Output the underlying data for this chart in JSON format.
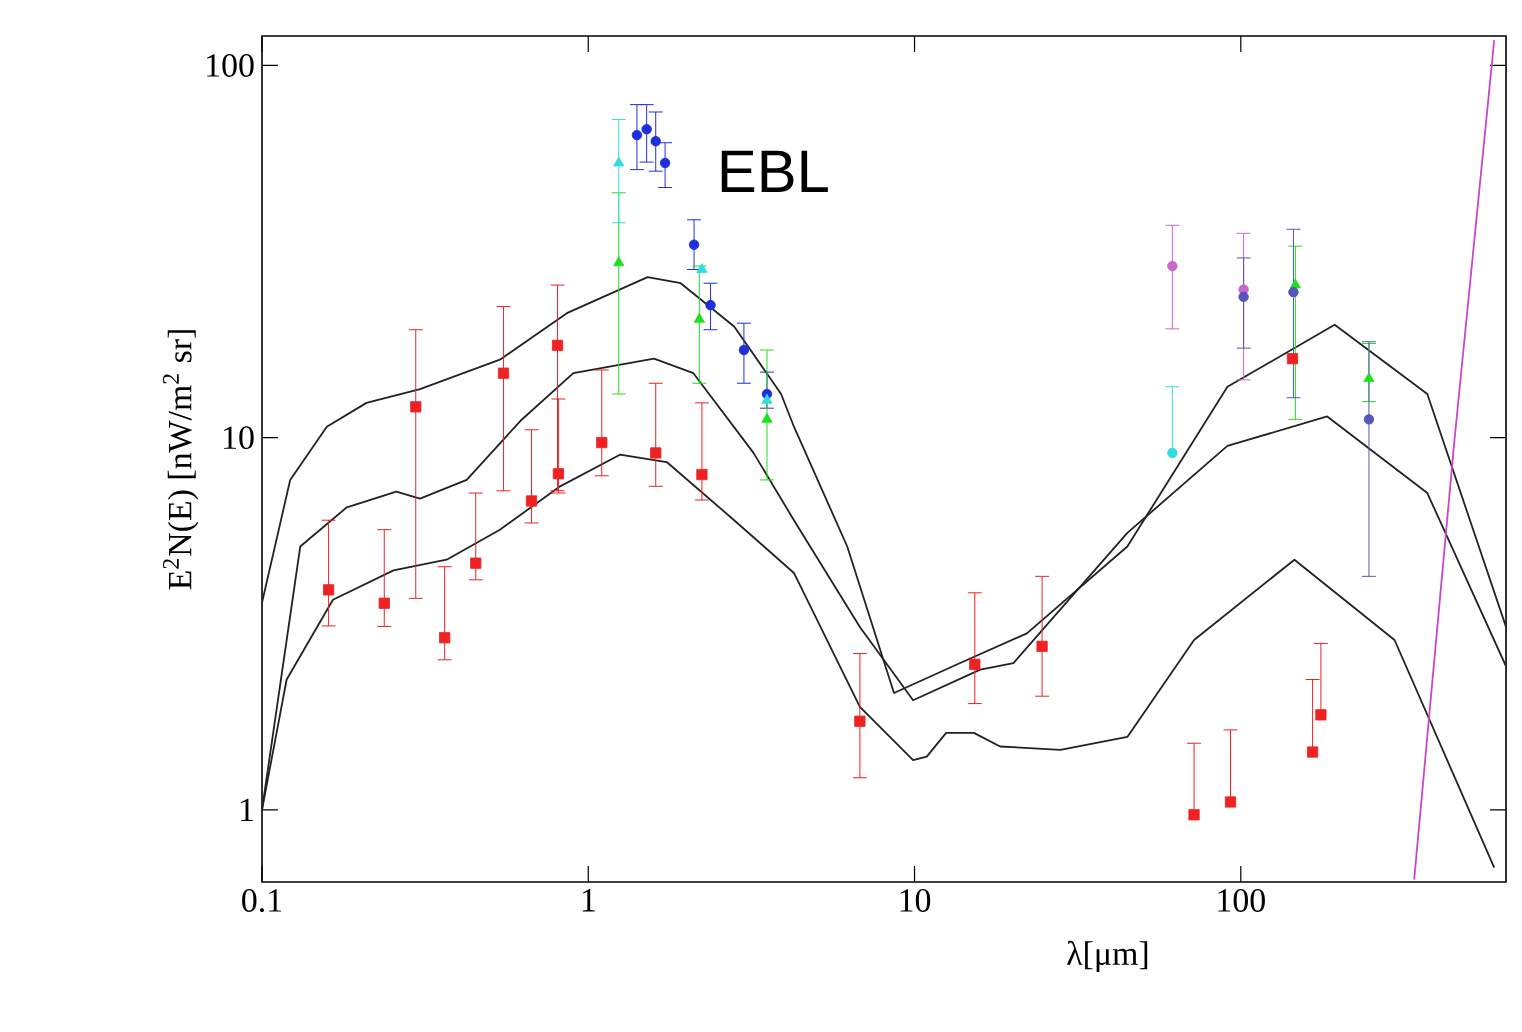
{
  "chart_data": {
    "type": "scatter",
    "xlabel": "λ[μm]",
    "ylabel": "E$^{2}$N(E) [nW/m$^{2}$ sr]",
    "annotations": [
      "EBL"
    ],
    "log": "xy",
    "grid": false,
    "xlim": [
      0.1,
      650
    ],
    "ylim": [
      0.64,
      120
    ],
    "xticks": [
      0.1,
      1,
      10,
      100
    ],
    "yticks": [
      1,
      10,
      100
    ],
    "series": [
      {
        "type": "line",
        "marker": "none",
        "color": "#222222",
        "x": [
          0.1,
          0.122,
          0.158,
          0.209,
          0.305,
          0.536,
          0.86,
          1.52,
          1.92,
          2.8,
          3.9,
          4.27,
          6.22,
          8.65,
          13.8,
          22.1,
          44.9,
          91,
          194,
          373,
          650
        ],
        "values": [
          3.6,
          7.7,
          10.7,
          12.4,
          13.5,
          16.2,
          21.6,
          27.0,
          26.0,
          19.9,
          13.1,
          10.7,
          5.1,
          2.06,
          2.48,
          2.98,
          5.1,
          13.7,
          20.1,
          13.1,
          3.1
        ]
      },
      {
        "type": "line",
        "marker": "none",
        "color": "#222222",
        "x": [
          0.1,
          0.131,
          0.182,
          0.258,
          0.305,
          0.424,
          0.62,
          0.9,
          1.59,
          2.1,
          3.21,
          4.27,
          6.8,
          9.9,
          15.9,
          20.1,
          44.9,
          91,
          184,
          373,
          650
        ],
        "values": [
          1.0,
          5.1,
          6.5,
          7.16,
          6.86,
          7.7,
          11.1,
          14.9,
          16.3,
          14.9,
          9.1,
          6.0,
          3.1,
          1.97,
          2.38,
          2.48,
          5.55,
          9.5,
          11.4,
          7.1,
          2.43
        ]
      },
      {
        "type": "line",
        "marker": "none",
        "color": "#222222",
        "x": [
          0.1,
          0.119,
          0.165,
          0.253,
          0.368,
          0.536,
          0.82,
          1.25,
          1.74,
          2.8,
          4.27,
          6.8,
          9.9,
          10.9,
          12.5,
          15.2,
          18.3,
          28,
          44.9,
          71.9,
          146,
          296,
          598
        ],
        "values": [
          1.0,
          2.24,
          3.67,
          4.4,
          4.7,
          5.66,
          7.4,
          9.0,
          8.6,
          6.0,
          4.33,
          1.89,
          1.36,
          1.39,
          1.61,
          1.61,
          1.48,
          1.45,
          1.57,
          2.86,
          4.7,
          2.86,
          0.7
        ]
      },
      {
        "type": "line",
        "marker": "none",
        "color": "#cc44cc",
        "x": [
          340,
          452,
          598
        ],
        "values": [
          0.65,
          9.9,
          117
        ]
      },
      {
        "marker": "square",
        "color": "#ee2222",
        "x": [
          0.16,
          0.237,
          0.296,
          0.363,
          0.452,
          0.55,
          0.67,
          0.805,
          0.81,
          1.1,
          1.61,
          2.23,
          6.8,
          15.3,
          24.6,
          71.9,
          93,
          144,
          176,
          166
        ],
        "values": [
          3.9,
          3.59,
          12.1,
          2.9,
          4.6,
          14.9,
          6.76,
          17.7,
          8.0,
          9.7,
          9.1,
          7.96,
          1.73,
          2.46,
          2.75,
          0.97,
          1.05,
          16.3,
          1.8,
          1.43
        ],
        "errors": [
          [
            3.12,
            6.0
          ],
          [
            3.11,
            5.66
          ],
          [
            3.7,
            19.5
          ],
          [
            2.53,
            4.5
          ],
          [
            4.15,
            7.1
          ],
          [
            7.2,
            22.5
          ],
          [
            5.9,
            10.5
          ],
          [
            7.2,
            25.7
          ],
          [
            7.1,
            12.7
          ],
          [
            7.9,
            15.2
          ],
          [
            7.4,
            14.0
          ],
          [
            6.8,
            12.4
          ],
          [
            1.22,
            2.63
          ],
          [
            1.93,
            3.83
          ],
          [
            2.02,
            4.24
          ],
          [
            0.97,
            1.51
          ],
          [
            1.05,
            1.64
          ],
          null,
          [
            1.8,
            2.8
          ],
          [
            1.43,
            2.24
          ]
        ]
      },
      {
        "marker": "circle",
        "color": "#1f2fdd",
        "x": [
          1.41,
          1.51,
          1.61,
          1.72,
          2.11,
          2.37,
          3.0,
          3.53
        ],
        "values": [
          65,
          67.4,
          62.6,
          54.7,
          33.0,
          22.7,
          17.2,
          13.1
        ],
        "errors": [
          [
            52.5,
            78.5
          ],
          [
            55,
            78.5
          ],
          [
            52,
            75
          ],
          [
            47,
            62
          ],
          [
            28.3,
            38.5
          ],
          [
            19.5,
            26
          ],
          [
            14.0,
            20.3
          ],
          [
            12.0,
            15.0
          ]
        ]
      },
      {
        "marker": "triangle",
        "color": "#22dd22",
        "x": [
          1.24,
          2.19,
          3.53,
          147,
          247
        ],
        "values": [
          29.5,
          20.8,
          11.2,
          25.7,
          14.4
        ],
        "errors": [
          [
            13.1,
            45.5
          ],
          [
            14.0,
            28.9
          ],
          [
            7.7,
            17.2
          ],
          [
            11.2,
            32.7
          ],
          [
            12.5,
            17.9
          ]
        ]
      },
      {
        "marker": "triangle",
        "color": "#33dddd",
        "x": [
          1.24,
          2.23,
          3.53
        ],
        "values": [
          54.7,
          28.3,
          12.6
        ],
        "errors": [
          [
            37.8,
            71.6
          ],
          null,
          null
        ]
      },
      {
        "marker": "circle",
        "color": "#33dddd",
        "x": [
          61.7
        ],
        "values": [
          9.1
        ],
        "errors": [
          [
            9.1,
            13.7
          ]
        ]
      },
      {
        "marker": "circle",
        "color": "#cc66cc",
        "x": [
          61.7,
          102
        ],
        "values": [
          28.9,
          25
        ],
        "errors": [
          [
            19.6,
            37.2
          ],
          [
            14.3,
            35.4
          ]
        ]
      },
      {
        "marker": "circle",
        "color": "#5555bb",
        "x": [
          102,
          145,
          247
        ],
        "values": [
          23.9,
          24.6,
          11.2
        ],
        "errors": [
          [
            17.4,
            30.4
          ],
          [
            12.8,
            36.3
          ],
          [
            4.24,
            18.1
          ]
        ]
      }
    ]
  }
}
